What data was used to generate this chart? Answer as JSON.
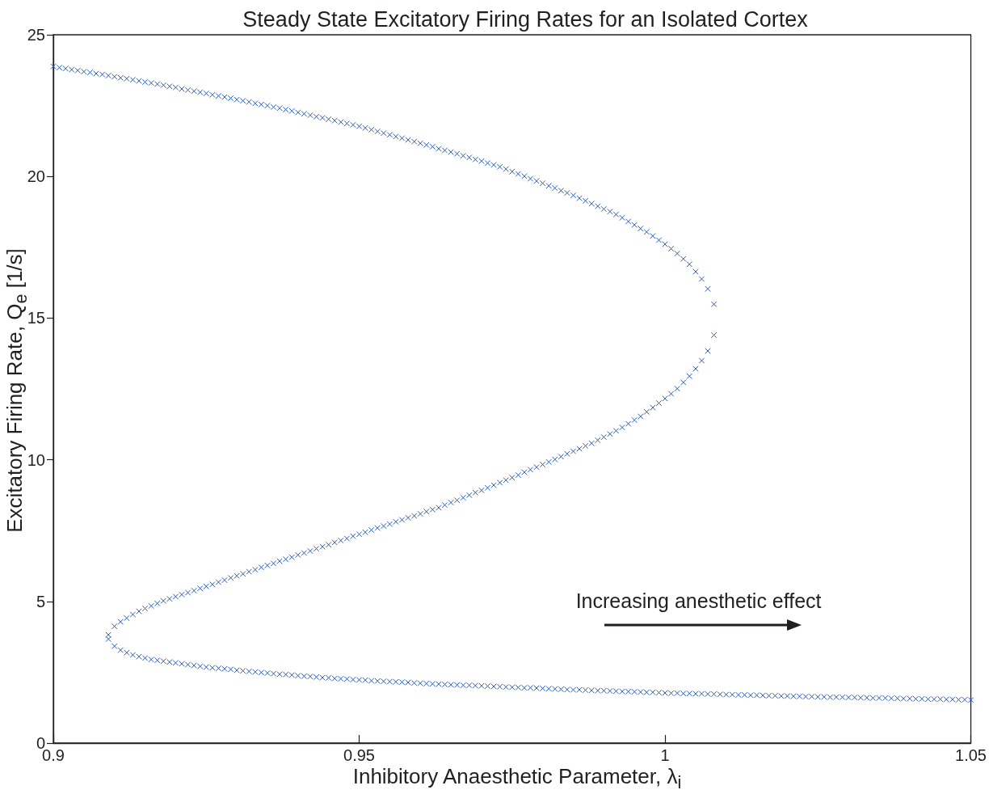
{
  "chart_data": {
    "type": "scatter",
    "title": "Steady State Excitatory Firing Rates for an Isolated Cortex",
    "xlabel": "Inhibitory Anaesthetic Parameter, λ$_{i}$",
    "ylabel": "Excitatory Firing Rate, Q$_{e}$ [1/s]",
    "annotations": [
      "Increasing anesthetic effect"
    ],
    "x": [
      0.9,
      0.901,
      0.902,
      0.903,
      0.904,
      0.905,
      0.906,
      0.907,
      0.908,
      0.909,
      0.91,
      0.911,
      0.912,
      0.913,
      0.914,
      0.915,
      0.916,
      0.917,
      0.918,
      0.919,
      0.92,
      0.921,
      0.922,
      0.923,
      0.924,
      0.925,
      0.926,
      0.927,
      0.928,
      0.929,
      0.93,
      0.931,
      0.932,
      0.933,
      0.934,
      0.935,
      0.936,
      0.937,
      0.938,
      0.939,
      0.94,
      0.941,
      0.942,
      0.943,
      0.944,
      0.945,
      0.946,
      0.947,
      0.948,
      0.949,
      0.95,
      0.951,
      0.952,
      0.953,
      0.954,
      0.955,
      0.956,
      0.957,
      0.958,
      0.959,
      0.96,
      0.961,
      0.962,
      0.963,
      0.964,
      0.965,
      0.966,
      0.967,
      0.968,
      0.969,
      0.97,
      0.971,
      0.972,
      0.973,
      0.974,
      0.975,
      0.976,
      0.977,
      0.978,
      0.979,
      0.98,
      0.981,
      0.982,
      0.983,
      0.984,
      0.985,
      0.986,
      0.987,
      0.988,
      0.989,
      0.99,
      0.991,
      0.992,
      0.993,
      0.994,
      0.995,
      0.996,
      0.997,
      0.998,
      0.999,
      1,
      1.001,
      1.002,
      1.003,
      1.004,
      1.005,
      1.006,
      1.007,
      1.008,
      1.008,
      1.007,
      1.006,
      1.005,
      1.004,
      1.003,
      1.002,
      1.001,
      1,
      0.999,
      0.998,
      0.997,
      0.996,
      0.995,
      0.994,
      0.993,
      0.992,
      0.991,
      0.99,
      0.989,
      0.988,
      0.987,
      0.986,
      0.985,
      0.984,
      0.983,
      0.982,
      0.981,
      0.98,
      0.979,
      0.978,
      0.977,
      0.976,
      0.975,
      0.974,
      0.973,
      0.972,
      0.971,
      0.97,
      0.969,
      0.968,
      0.967,
      0.966,
      0.965,
      0.964,
      0.963,
      0.962,
      0.961,
      0.96,
      0.959,
      0.958,
      0.957,
      0.956,
      0.955,
      0.954,
      0.953,
      0.952,
      0.951,
      0.95,
      0.949,
      0.948,
      0.947,
      0.946,
      0.945,
      0.944,
      0.943,
      0.942,
      0.941,
      0.94,
      0.939,
      0.938,
      0.937,
      0.936,
      0.935,
      0.934,
      0.933,
      0.932,
      0.931,
      0.93,
      0.929,
      0.928,
      0.927,
      0.926,
      0.925,
      0.924,
      0.923,
      0.922,
      0.921,
      0.92,
      0.919,
      0.918,
      0.917,
      0.916,
      0.915,
      0.914,
      0.913,
      0.912,
      0.911,
      0.91,
      0.909,
      0.909,
      0.91,
      0.911,
      0.912,
      0.913,
      0.914,
      0.915,
      0.916,
      0.917,
      0.918,
      0.919,
      0.92,
      0.921,
      0.922,
      0.923,
      0.924,
      0.925,
      0.926,
      0.927,
      0.928,
      0.929,
      0.93,
      0.931,
      0.932,
      0.933,
      0.934,
      0.935,
      0.936,
      0.937,
      0.938,
      0.939,
      0.94,
      0.941,
      0.942,
      0.943,
      0.944,
      0.945,
      0.946,
      0.947,
      0.948,
      0.949,
      0.95,
      0.951,
      0.952,
      0.953,
      0.954,
      0.955,
      0.956,
      0.957,
      0.958,
      0.959,
      0.96,
      0.961,
      0.962,
      0.963,
      0.964,
      0.965,
      0.966,
      0.967,
      0.968,
      0.969,
      0.97,
      0.971,
      0.972,
      0.973,
      0.974,
      0.975,
      0.976,
      0.977,
      0.978,
      0.979,
      0.98,
      0.981,
      0.982,
      0.983,
      0.984,
      0.985,
      0.986,
      0.987,
      0.988,
      0.989,
      0.99,
      0.991,
      0.992,
      0.993,
      0.994,
      0.995,
      0.996,
      0.997,
      0.998,
      0.999,
      1,
      1.001,
      1.002,
      1.003,
      1.004,
      1.005,
      1.006,
      1.007,
      1.008,
      1.009,
      1.01,
      1.011,
      1.012,
      1.013,
      1.014,
      1.015,
      1.016,
      1.017,
      1.018,
      1.019,
      1.02,
      1.021,
      1.022,
      1.023,
      1.024,
      1.025,
      1.026,
      1.027,
      1.028,
      1.029,
      1.03,
      1.031,
      1.032,
      1.033,
      1.034,
      1.035,
      1.036,
      1.037,
      1.038,
      1.039,
      1.04,
      1.041,
      1.042,
      1.043,
      1.044,
      1.045,
      1.046,
      1.047,
      1.048,
      1.049,
      1.05
    ],
    "values": [
      23.88,
      23.84,
      23.81,
      23.77,
      23.74,
      23.7,
      23.67,
      23.63,
      23.6,
      23.56,
      23.52,
      23.48,
      23.45,
      23.41,
      23.37,
      23.33,
      23.3,
      23.26,
      23.22,
      23.18,
      23.14,
      23.09,
      23.05,
      23.01,
      22.97,
      22.93,
      22.88,
      22.84,
      22.8,
      22.76,
      22.71,
      22.67,
      22.63,
      22.58,
      22.54,
      22.5,
      22.45,
      22.41,
      22.36,
      22.31,
      22.26,
      22.21,
      22.16,
      22.11,
      22.07,
      22.02,
      21.97,
      21.92,
      21.87,
      21.82,
      21.77,
      21.71,
      21.65,
      21.59,
      21.53,
      21.47,
      21.41,
      21.35,
      21.29,
      21.23,
      21.17,
      21.11,
      21.05,
      20.98,
      20.92,
      20.86,
      20.8,
      20.73,
      20.67,
      20.6,
      20.54,
      20.47,
      20.41,
      20.34,
      20.26,
      20.17,
      20.09,
      20.01,
      19.92,
      19.84,
      19.76,
      19.67,
      19.59,
      19.5,
      19.42,
      19.33,
      19.23,
      19.14,
      19.04,
      18.95,
      18.85,
      18.76,
      18.66,
      18.54,
      18.41,
      18.29,
      18.16,
      18.04,
      17.9,
      17.75,
      17.61,
      17.45,
      17.28,
      17.09,
      16.9,
      16.64,
      16.38,
      16.03,
      15.49,
      14.4,
      13.84,
      13.5,
      13.21,
      12.95,
      12.73,
      12.51,
      12.33,
      12.16,
      12,
      11.84,
      11.69,
      11.53,
      11.4,
      11.27,
      11.14,
      11.02,
      10.91,
      10.8,
      10.69,
      10.58,
      10.49,
      10.39,
      10.3,
      10.21,
      10.11,
      10.01,
      9.92,
      9.83,
      9.74,
      9.65,
      9.56,
      9.46,
      9.37,
      9.28,
      9.19,
      9.1,
      9.01,
      8.92,
      8.84,
      8.75,
      8.66,
      8.57,
      8.49,
      8.4,
      8.31,
      8.24,
      8.17,
      8.09,
      8.02,
      7.95,
      7.88,
      7.81,
      7.73,
      7.66,
      7.59,
      7.52,
      7.44,
      7.37,
      7.3,
      7.22,
      7.15,
      7.08,
      7,
      6.93,
      6.86,
      6.78,
      6.71,
      6.64,
      6.56,
      6.49,
      6.42,
      6.34,
      6.27,
      6.2,
      6.12,
      6.05,
      5.97,
      5.9,
      5.83,
      5.75,
      5.68,
      5.6,
      5.53,
      5.46,
      5.38,
      5.31,
      5.24,
      5.17,
      5.09,
      5.02,
      4.93,
      4.84,
      4.75,
      4.65,
      4.54,
      4.41,
      4.28,
      4.12,
      3.82,
      3.67,
      3.42,
      3.28,
      3.19,
      3.11,
      3.05,
      3,
      2.95,
      2.92,
      2.89,
      2.86,
      2.83,
      2.8,
      2.77,
      2.74,
      2.71,
      2.68,
      2.66,
      2.64,
      2.62,
      2.6,
      2.57,
      2.55,
      2.53,
      2.51,
      2.49,
      2.47,
      2.45,
      2.43,
      2.42,
      2.4,
      2.38,
      2.36,
      2.35,
      2.33,
      2.31,
      2.3,
      2.28,
      2.27,
      2.26,
      2.24,
      2.23,
      2.22,
      2.2,
      2.19,
      2.18,
      2.17,
      2.16,
      2.15,
      2.14,
      2.12,
      2.11,
      2.1,
      2.09,
      2.08,
      2.07,
      2.06,
      2.05,
      2.04,
      2.04,
      2.03,
      2.02,
      2.01,
      2,
      1.99,
      1.98,
      1.97,
      1.96,
      1.95,
      1.95,
      1.94,
      1.93,
      1.92,
      1.91,
      1.9,
      1.89,
      1.88,
      1.88,
      1.87,
      1.86,
      1.85,
      1.85,
      1.84,
      1.83,
      1.82,
      1.82,
      1.81,
      1.8,
      1.79,
      1.79,
      1.78,
      1.77,
      1.76,
      1.76,
      1.75,
      1.75,
      1.74,
      1.74,
      1.73,
      1.73,
      1.72,
      1.71,
      1.71,
      1.7,
      1.7,
      1.69,
      1.69,
      1.68,
      1.67,
      1.67,
      1.66,
      1.66,
      1.65,
      1.65,
      1.64,
      1.64,
      1.63,
      1.63,
      1.62,
      1.62,
      1.62,
      1.61,
      1.61,
      1.6,
      1.6,
      1.59,
      1.59,
      1.59,
      1.58,
      1.58,
      1.57,
      1.57,
      1.56,
      1.56,
      1.55,
      1.55,
      1.55,
      1.54,
      1.54,
      1.53,
      1.53,
      1.52
    ],
    "color": "#2b5cb8",
    "marker": "cross",
    "xlim": [
      0.9,
      1.05
    ],
    "xticks": [
      0.9,
      0.95,
      1,
      1.05
    ],
    "ylim": [
      0,
      25
    ],
    "yticks": [
      0,
      5,
      10,
      15,
      20,
      25
    ]
  }
}
